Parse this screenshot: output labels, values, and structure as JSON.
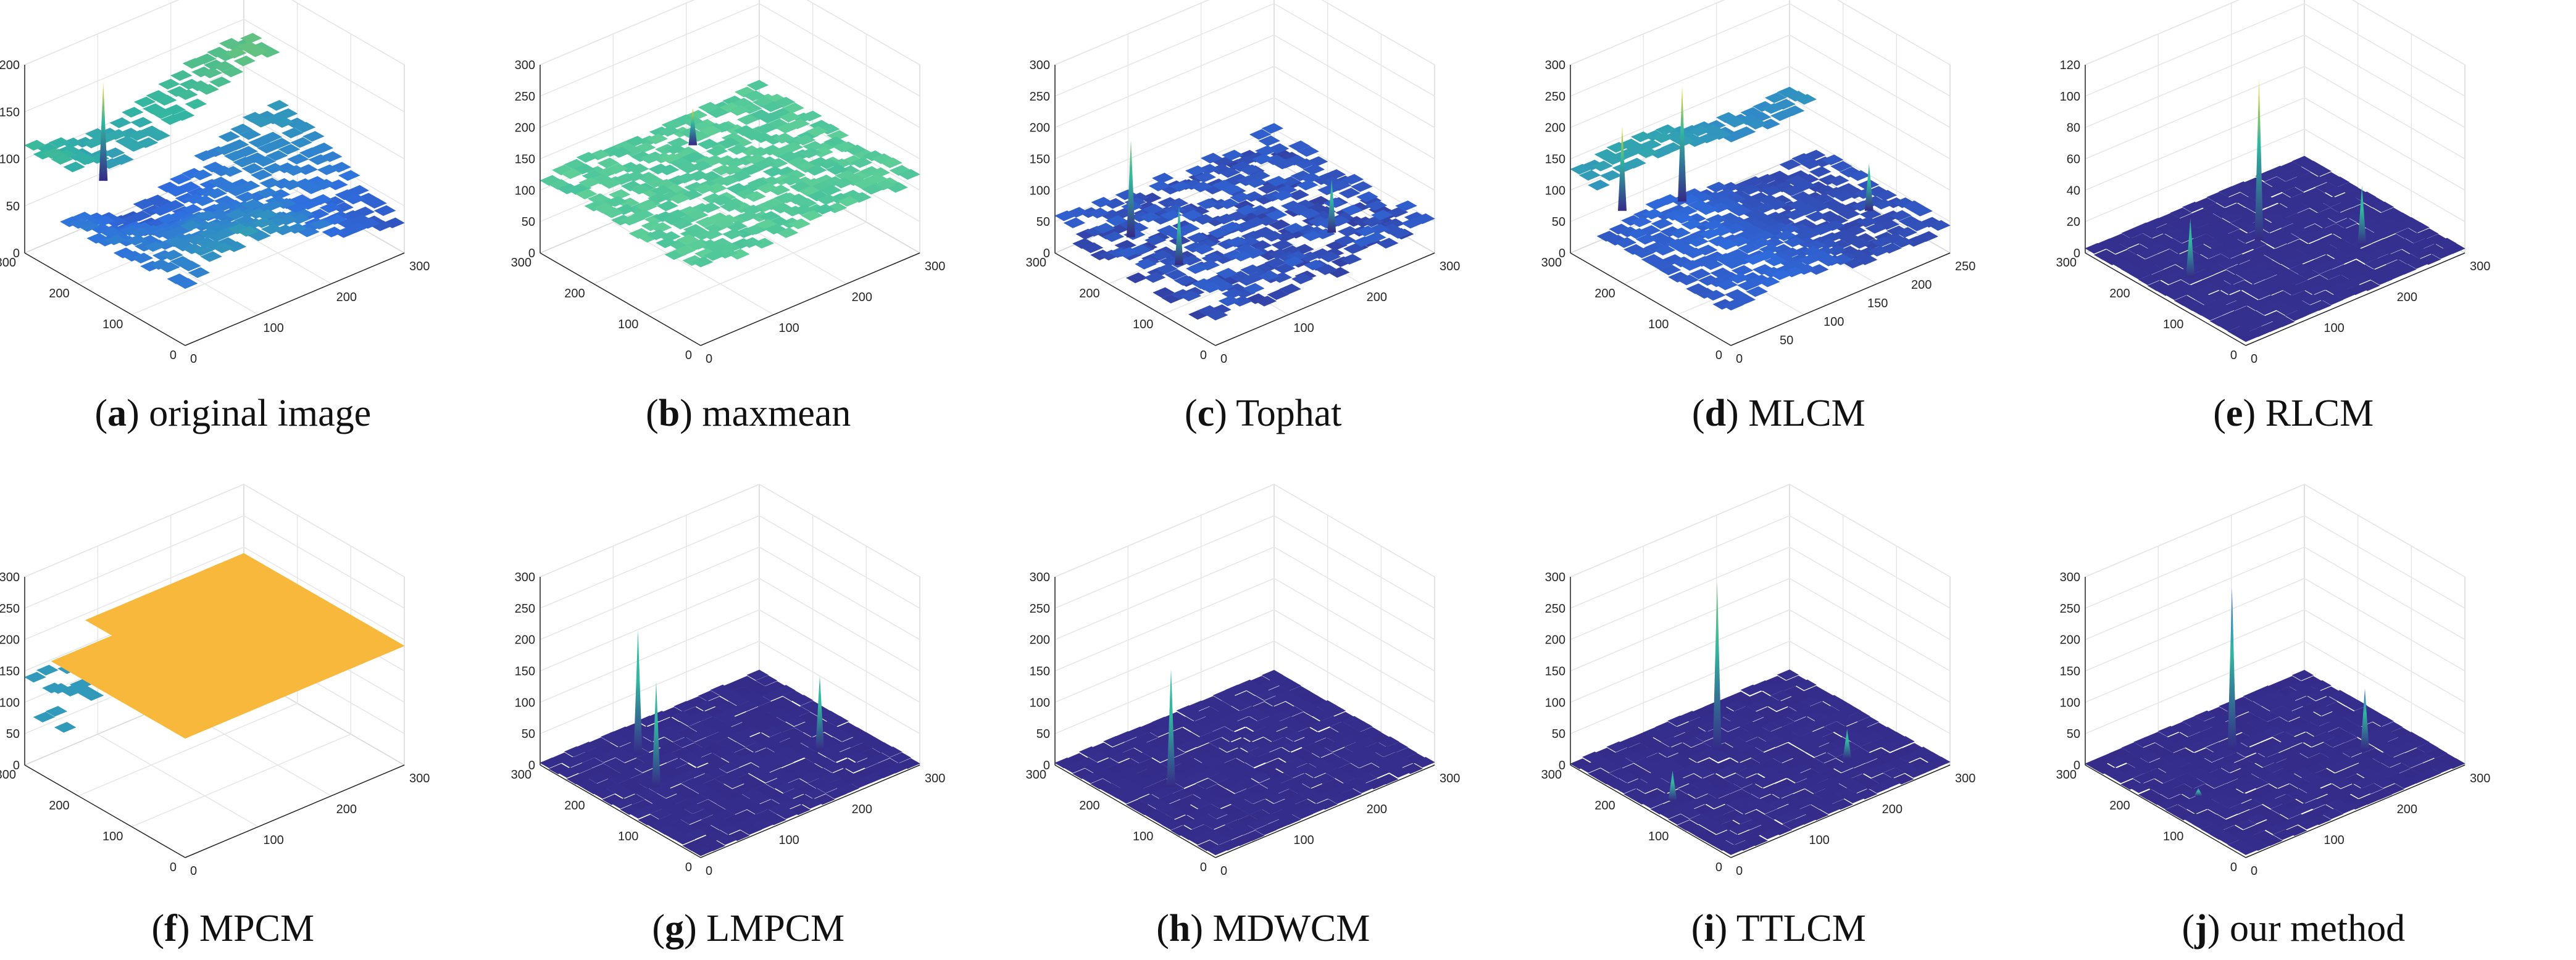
{
  "figure": {
    "colors": {
      "low": "#352a87",
      "blue": "#2f6ee0",
      "cyan": "#33b7a0",
      "green": "#7cc870",
      "yellow": "#f9d71c",
      "orange": "#f8b83c",
      "green_plane": "#5fcf98"
    }
  },
  "chart_data": [
    {
      "type": "surface",
      "id": "a",
      "letter": "a",
      "caption": ") original image",
      "zlim": [
        0,
        200
      ],
      "zticks": [
        "0",
        "50",
        "100",
        "150",
        "200"
      ],
      "x_ticks": [
        "0",
        "100",
        "200"
      ],
      "y_ticks": [
        "0",
        "100",
        "200"
      ],
      "x_end": "300",
      "y_end": "300",
      "style": "terrain",
      "base_level": 55,
      "peaks": [
        {
          "x": 0.3,
          "y": 0.92,
          "z": 160,
          "color": "#f9d71c"
        }
      ]
    },
    {
      "type": "surface",
      "id": "b",
      "letter": "b",
      "caption": ") maxmean",
      "zlim": [
        0,
        300
      ],
      "zticks": [
        "0",
        "50",
        "100",
        "150",
        "200",
        "250",
        "300"
      ],
      "x_ticks": [
        "0",
        "100",
        "200"
      ],
      "y_ticks": [
        "0",
        "100",
        "200"
      ],
      "x_end": "300",
      "y_end": "300",
      "style": "flat-noisy",
      "base_level": 120,
      "peaks": [
        {
          "x": 0.55,
          "y": 0.8,
          "z": 180,
          "color": "#f9d71c"
        }
      ]
    },
    {
      "type": "surface",
      "id": "c",
      "letter": "c",
      "caption": ") Tophat",
      "zlim": [
        0,
        300
      ],
      "zticks": [
        "0",
        "50",
        "100",
        "150",
        "200",
        "250",
        "300"
      ],
      "x_ticks": [
        "0",
        "100",
        "200"
      ],
      "y_ticks": [
        "0",
        "100",
        "200"
      ],
      "x_end": "300",
      "y_end": "300",
      "style": "spiky",
      "base_level": 25,
      "peaks": [
        {
          "x": 0.2,
          "y": 0.8,
          "z": 180,
          "color": "#7cc870"
        },
        {
          "x": 0.75,
          "y": 0.3,
          "z": 110,
          "color": "#33b7a0"
        },
        {
          "x": 0.2,
          "y": 0.5,
          "z": 120,
          "color": "#33b7a0"
        }
      ]
    },
    {
      "type": "surface",
      "id": "d",
      "letter": "d",
      "caption": ") MLCM",
      "zlim": [
        0,
        300
      ],
      "zticks": [
        "0",
        "50",
        "100",
        "150",
        "200",
        "250",
        "300"
      ],
      "x_ticks": [
        "0",
        "50",
        "100",
        "150",
        "200",
        "250"
      ],
      "y_ticks": [
        "0",
        "100",
        "200"
      ],
      "x_end": "",
      "y_end": "300",
      "style": "terrain-peaks",
      "base_level": 45,
      "peaks": [
        {
          "x": 0.4,
          "y": 0.85,
          "z": 230,
          "color": "#f9d71c"
        },
        {
          "x": 0.2,
          "y": 0.95,
          "z": 180,
          "color": "#f9d71c"
        },
        {
          "x": 0.85,
          "y": 0.3,
          "z": 120,
          "color": "#33b7a0"
        }
      ]
    },
    {
      "type": "surface",
      "id": "e",
      "letter": "e",
      "caption": ") RLCM",
      "zlim": [
        0,
        120
      ],
      "zticks": [
        "0",
        "20",
        "40",
        "60",
        "80",
        "100",
        "120"
      ],
      "x_ticks": [
        "0",
        "100",
        "200"
      ],
      "y_ticks": [
        "0",
        "100",
        "200"
      ],
      "x_end": "300",
      "y_end": "300",
      "style": "flat",
      "base_level": 2,
      "peaks": [
        {
          "x": 0.5,
          "y": 0.6,
          "z": 105,
          "color": "#f9d71c"
        },
        {
          "x": 0.15,
          "y": 0.55,
          "z": 40,
          "color": "#33b7a0"
        },
        {
          "x": 0.75,
          "y": 0.3,
          "z": 40,
          "color": "#33b7a0"
        }
      ]
    },
    {
      "type": "surface",
      "id": "f",
      "letter": "f",
      "caption": ") MPCM",
      "zlim": [
        0,
        300
      ],
      "zticks": [
        "0",
        "50",
        "100",
        "150",
        "200",
        "250",
        "300"
      ],
      "x_ticks": [
        "0",
        "100",
        "200"
      ],
      "y_ticks": [
        "0",
        "100",
        "200"
      ],
      "x_end": "300",
      "y_end": "300",
      "style": "plane-drop",
      "base_level": 190,
      "peaks": []
    },
    {
      "type": "surface",
      "id": "g",
      "letter": "g",
      "caption": ") LMPCM",
      "zlim": [
        0,
        300
      ],
      "zticks": [
        "0",
        "50",
        "100",
        "150",
        "200",
        "250",
        "300"
      ],
      "x_ticks": [
        "0",
        "100",
        "200"
      ],
      "y_ticks": [
        "0",
        "100",
        "200"
      ],
      "x_end": "300",
      "y_end": "300",
      "style": "flat",
      "base_level": 2,
      "peaks": [
        {
          "x": 0.3,
          "y": 0.8,
          "z": 200,
          "color": "#33b7a0"
        },
        {
          "x": 0.2,
          "y": 0.55,
          "z": 170,
          "color": "#33b7a0"
        },
        {
          "x": 0.8,
          "y": 0.35,
          "z": 120,
          "color": "#33b7a0"
        }
      ]
    },
    {
      "type": "surface",
      "id": "h",
      "letter": "h",
      "caption": ") MDWCM",
      "zlim": [
        0,
        300
      ],
      "zticks": [
        "0",
        "50",
        "100",
        "150",
        "200",
        "250",
        "300"
      ],
      "x_ticks": [
        "0",
        "100",
        "200"
      ],
      "y_ticks": [
        "0",
        "100",
        "200"
      ],
      "x_end": "300",
      "y_end": "300",
      "style": "flat",
      "base_level": 2,
      "peaks": [
        {
          "x": 0.2,
          "y": 0.55,
          "z": 190,
          "color": "#33b7a0"
        }
      ]
    },
    {
      "type": "surface",
      "id": "i",
      "letter": "i",
      "caption": ") TTLCM",
      "zlim": [
        0,
        300
      ],
      "zticks": [
        "0",
        "50",
        "100",
        "150",
        "200",
        "250",
        "300"
      ],
      "x_ticks": [
        "0",
        "100",
        "200"
      ],
      "y_ticks": [
        "0",
        "100",
        "200"
      ],
      "x_end": "300",
      "y_end": "300",
      "style": "flat",
      "base_level": 2,
      "peaks": [
        {
          "x": 0.45,
          "y": 0.7,
          "z": 270,
          "color": "#7cc870"
        },
        {
          "x": 0.1,
          "y": 0.5,
          "z": 50,
          "color": "#33b7a0"
        },
        {
          "x": 0.75,
          "y": 0.3,
          "z": 50,
          "color": "#33b7a0"
        }
      ]
    },
    {
      "type": "surface",
      "id": "j",
      "letter": "j",
      "caption": ") our method",
      "zlim": [
        0,
        300
      ],
      "zticks": [
        "0",
        "50",
        "100",
        "150",
        "200",
        "250",
        "300"
      ],
      "x_ticks": [
        "0",
        "100",
        "200"
      ],
      "y_ticks": [
        "0",
        "100",
        "200"
      ],
      "x_end": "300",
      "y_end": "300",
      "style": "flat",
      "base_level": 2,
      "peaks": [
        {
          "x": 0.45,
          "y": 0.7,
          "z": 260,
          "color": "#2f6ee0"
        },
        {
          "x": 0.8,
          "y": 0.35,
          "z": 100,
          "color": "#2f6ee0"
        },
        {
          "x": 0.15,
          "y": 0.5,
          "z": 15,
          "color": "#2f6ee0"
        }
      ]
    }
  ]
}
